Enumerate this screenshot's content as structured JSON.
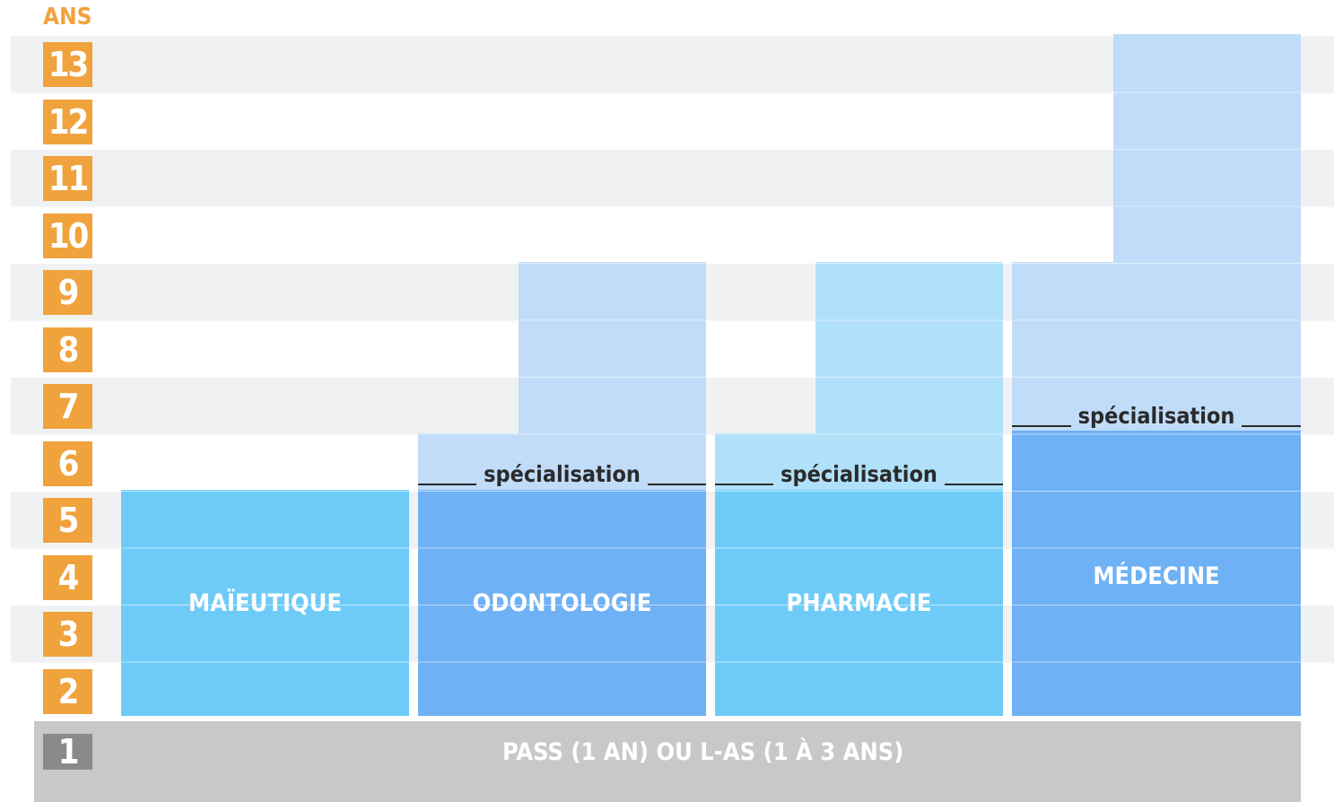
{
  "axis_label": "ANS",
  "years": [
    13,
    12,
    11,
    10,
    9,
    8,
    7,
    6,
    5,
    4,
    3,
    2
  ],
  "columns": [
    {
      "label": "MAÏEUTIQUE"
    },
    {
      "label": "ODONTOLOGIE",
      "note": "spécialisation"
    },
    {
      "label": "PHARMACIE",
      "note": "spécialisation"
    },
    {
      "label": "MÉDECINE",
      "note": "spécialisation"
    }
  ],
  "base": {
    "year": 1,
    "label": "PASS (1 AN) OU L-AS (1 À 3 ANS)"
  }
}
